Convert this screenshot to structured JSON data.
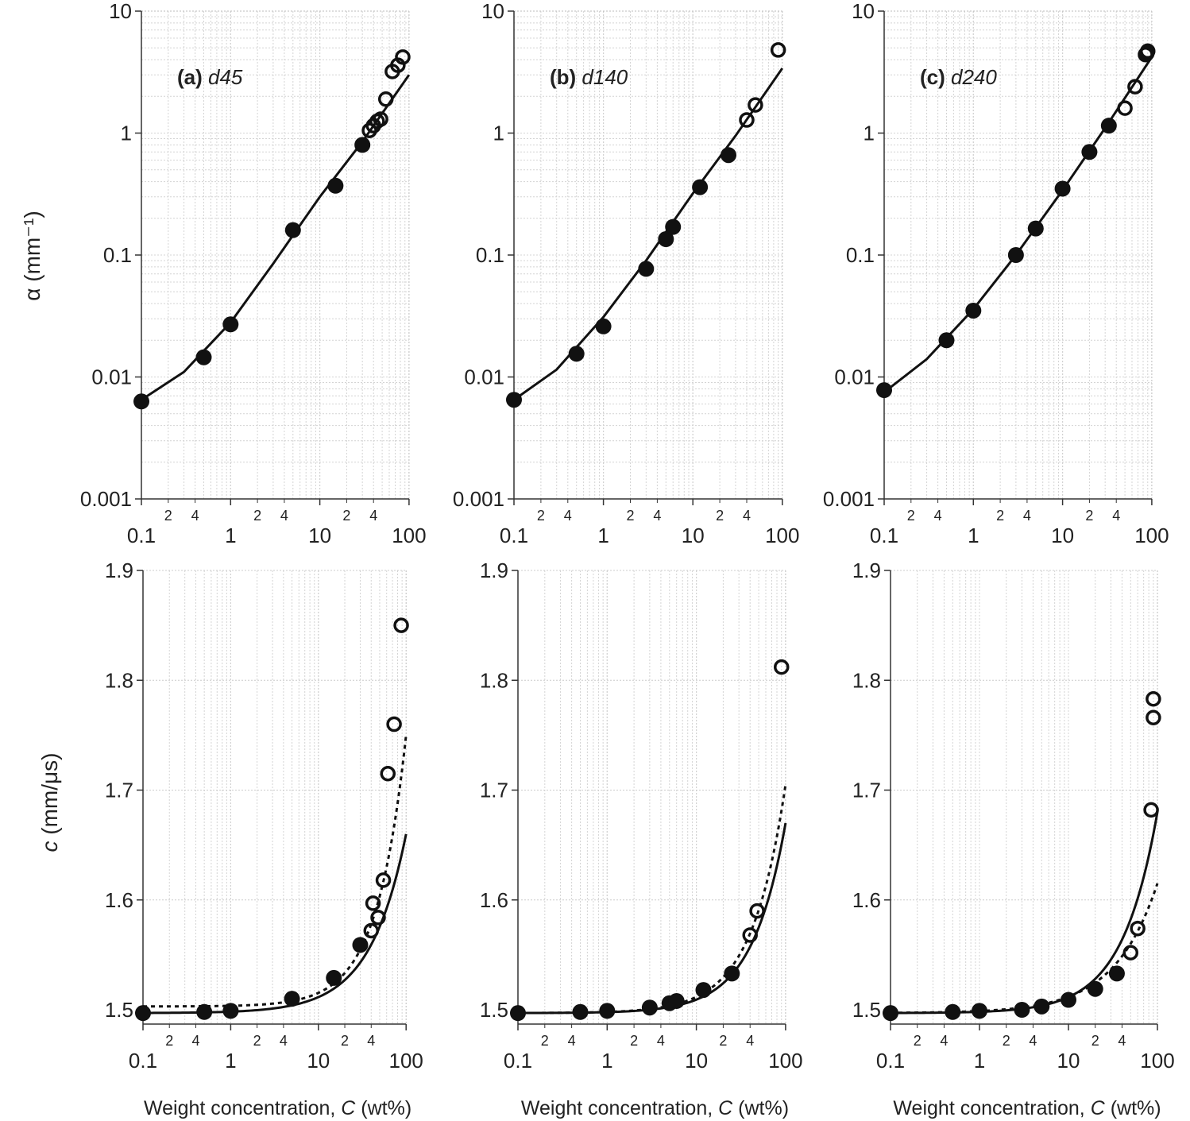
{
  "chart_data": [
    {
      "id": "a-alpha",
      "type": "scatter",
      "panel_label": "(a)",
      "panel_name": "d45",
      "yscale": "log",
      "xscale": "log",
      "xlim": [
        0.1,
        100
      ],
      "ylim": [
        0.001,
        10
      ],
      "ylabel": "α (mm⁻¹)",
      "yticks": [
        "10",
        "1",
        "0.1",
        "0.01",
        "0.001"
      ],
      "filled": [
        [
          0.1,
          0.0063
        ],
        [
          0.5,
          0.0145
        ],
        [
          1,
          0.027
        ],
        [
          5,
          0.16
        ],
        [
          15,
          0.37
        ],
        [
          30,
          0.8
        ]
      ],
      "open": [
        [
          36,
          1.05
        ],
        [
          40,
          1.15
        ],
        [
          44,
          1.25
        ],
        [
          48,
          1.3
        ],
        [
          55,
          1.9
        ],
        [
          65,
          3.2
        ],
        [
          75,
          3.6
        ],
        [
          85,
          4.2
        ]
      ],
      "fit_solid": [
        [
          0.1,
          0.0065
        ],
        [
          0.3,
          0.011
        ],
        [
          1,
          0.028
        ],
        [
          3,
          0.085
        ],
        [
          10,
          0.3
        ],
        [
          30,
          0.85
        ],
        [
          100,
          3.0
        ]
      ]
    },
    {
      "id": "b-alpha",
      "type": "scatter",
      "panel_label": "(b)",
      "panel_name": "d140",
      "yscale": "log",
      "xscale": "log",
      "xlim": [
        0.1,
        100
      ],
      "ylim": [
        0.001,
        10
      ],
      "yticks": [
        "10",
        "1",
        "0.1",
        "0.01",
        "0.001"
      ],
      "filled": [
        [
          0.1,
          0.0065
        ],
        [
          0.5,
          0.0155
        ],
        [
          1,
          0.026
        ],
        [
          3,
          0.077
        ],
        [
          5,
          0.135
        ],
        [
          6,
          0.17
        ],
        [
          12,
          0.36
        ],
        [
          25,
          0.66
        ]
      ],
      "open": [
        [
          40,
          1.28
        ],
        [
          50,
          1.7
        ],
        [
          90,
          4.8
        ]
      ],
      "fit_solid": [
        [
          0.1,
          0.0065
        ],
        [
          0.3,
          0.0115
        ],
        [
          1,
          0.031
        ],
        [
          3,
          0.09
        ],
        [
          10,
          0.32
        ],
        [
          30,
          0.95
        ],
        [
          100,
          3.4
        ]
      ]
    },
    {
      "id": "c-alpha",
      "type": "scatter",
      "panel_label": "(c)",
      "panel_name": "d240",
      "yscale": "log",
      "xscale": "log",
      "xlim": [
        0.1,
        100
      ],
      "ylim": [
        0.001,
        10
      ],
      "yticks": [
        "10",
        "1",
        "0.1",
        "0.01",
        "0.001"
      ],
      "filled": [
        [
          0.1,
          0.0078
        ],
        [
          0.5,
          0.02
        ],
        [
          1,
          0.035
        ],
        [
          3,
          0.1
        ],
        [
          5,
          0.165
        ],
        [
          10,
          0.35
        ],
        [
          20,
          0.7
        ],
        [
          33,
          1.15
        ]
      ],
      "open": [
        [
          50,
          1.6
        ],
        [
          65,
          2.4
        ],
        [
          85,
          4.4
        ],
        [
          88,
          4.5
        ],
        [
          90,
          4.7
        ]
      ],
      "fit_solid": [
        [
          0.1,
          0.0075
        ],
        [
          0.3,
          0.014
        ],
        [
          1,
          0.036
        ],
        [
          3,
          0.1
        ],
        [
          10,
          0.34
        ],
        [
          30,
          1.1
        ],
        [
          100,
          4.2
        ]
      ]
    },
    {
      "id": "a-c",
      "type": "scatter",
      "yscale": "linear",
      "xscale": "log",
      "xlim": [
        0.1,
        100
      ],
      "ylim": [
        1.49,
        1.9
      ],
      "ylabel": "c (mm/μs)",
      "xlabel": "Weight concentration, C (wt%)",
      "yticks": [
        "1.9",
        "1.8",
        "1.7",
        "1.6",
        "1.5"
      ],
      "filled": [
        [
          0.1,
          1.497
        ],
        [
          0.5,
          1.498
        ],
        [
          1,
          1.499
        ],
        [
          5,
          1.51
        ],
        [
          15,
          1.529
        ],
        [
          30,
          1.559
        ]
      ],
      "open": [
        [
          40,
          1.572
        ],
        [
          42,
          1.597
        ],
        [
          48,
          1.584
        ],
        [
          55,
          1.618
        ],
        [
          62,
          1.715
        ],
        [
          73,
          1.76
        ],
        [
          88,
          1.85
        ]
      ],
      "fit_solid": {
        "c0": 1.497,
        "c100": 1.66,
        "p": 1.05
      },
      "fit_dotted": {
        "c0": 1.503,
        "c100": 1.75,
        "p": 1.3
      }
    },
    {
      "id": "b-c",
      "type": "scatter",
      "yscale": "linear",
      "xscale": "log",
      "xlim": [
        0.1,
        100
      ],
      "ylim": [
        1.49,
        1.9
      ],
      "xlabel": "Weight concentration, C (wt%)",
      "yticks": [
        "1.9",
        "1.8",
        "1.7",
        "1.6",
        "1.5"
      ],
      "filled": [
        [
          0.1,
          1.497
        ],
        [
          0.5,
          1.498
        ],
        [
          1,
          1.499
        ],
        [
          3,
          1.502
        ],
        [
          5,
          1.506
        ],
        [
          6,
          1.508
        ],
        [
          12,
          1.518
        ],
        [
          25,
          1.533
        ]
      ],
      "open": [
        [
          40,
          1.568
        ],
        [
          48,
          1.59
        ],
        [
          90,
          1.812
        ]
      ],
      "fit_solid": {
        "c0": 1.497,
        "c100": 1.67,
        "p": 1.15
      },
      "fit_dotted": {
        "c0": 1.497,
        "c100": 1.705,
        "p": 1.15
      }
    },
    {
      "id": "c-c",
      "type": "scatter",
      "yscale": "linear",
      "xscale": "log",
      "xlim": [
        0.1,
        100
      ],
      "ylim": [
        1.49,
        1.9
      ],
      "xlabel": "Weight concentration, C (wt%)",
      "yticks": [
        "1.9",
        "1.8",
        "1.7",
        "1.6",
        "1.5"
      ],
      "filled": [
        [
          0.1,
          1.497
        ],
        [
          0.5,
          1.498
        ],
        [
          1,
          1.499
        ],
        [
          3,
          1.5
        ],
        [
          5,
          1.503
        ],
        [
          10,
          1.509
        ],
        [
          20,
          1.519
        ],
        [
          35,
          1.533
        ]
      ],
      "open": [
        [
          50,
          1.552
        ],
        [
          60,
          1.574
        ],
        [
          85,
          1.682
        ],
        [
          90,
          1.766
        ],
        [
          90,
          1.783
        ]
      ],
      "fit_solid": {
        "c0": 1.497,
        "c100": 1.68,
        "p": 1.1
      },
      "fit_dotted": {
        "c0": 1.497,
        "c100": 1.615,
        "p": 0.9
      }
    }
  ],
  "xticks": {
    "major": [
      "0.1",
      "1",
      "10",
      "100"
    ],
    "minor": [
      "2",
      "4"
    ]
  },
  "xlabel_parts": {
    "prefix": "Weight concentration, ",
    "var": "C",
    "suffix": " (wt%)"
  },
  "ylabel_top": {
    "sym": "α",
    "unit": " (mm",
    "exp": "-1",
    "close": ")"
  },
  "ylabel_bottom": {
    "sym": "c",
    "unit": " (mm/μs)"
  }
}
